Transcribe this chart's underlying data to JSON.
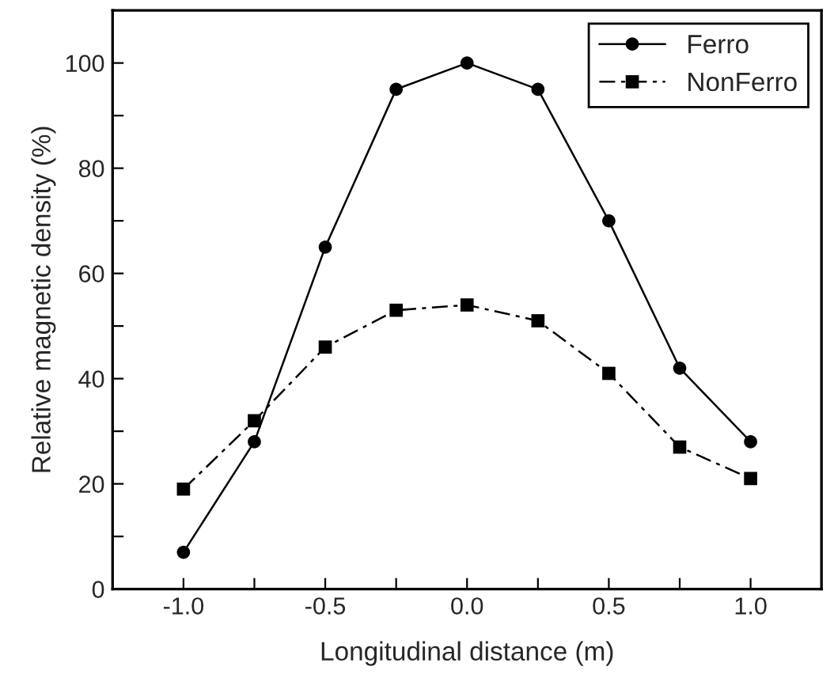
{
  "chart_data": {
    "type": "line",
    "xlabel": "Longitudinal distance (m)",
    "ylabel": "Relative magnetic density (%)",
    "x": [
      -1.0,
      -0.75,
      -0.5,
      -0.25,
      0.0,
      0.25,
      0.5,
      0.75,
      1.0
    ],
    "series": [
      {
        "name": "Ferro",
        "color": "#000000",
        "marker": "circle",
        "line_style": "solid",
        "values": [
          7,
          28,
          65,
          95,
          100,
          95,
          70,
          42,
          28
        ]
      },
      {
        "name": "NonFerro",
        "color": "#000000",
        "marker": "square",
        "line_style": "dashed",
        "values": [
          19,
          32,
          46,
          53,
          54,
          51,
          41,
          27,
          21
        ]
      }
    ],
    "xlim": [
      -1.25,
      1.25
    ],
    "ylim": [
      0,
      110
    ],
    "xticks": [
      {
        "value": -1.0,
        "label": "-1.0"
      },
      {
        "value": -0.75,
        "label": null
      },
      {
        "value": -0.5,
        "label": "-0.5"
      },
      {
        "value": -0.25,
        "label": null
      },
      {
        "value": 0.0,
        "label": "0.0"
      },
      {
        "value": 0.25,
        "label": null
      },
      {
        "value": 0.5,
        "label": "0.5"
      },
      {
        "value": 0.75,
        "label": null
      },
      {
        "value": 1.0,
        "label": "1.0"
      }
    ],
    "yticks": [
      0,
      {
        "value": 10,
        "label": null
      },
      20,
      {
        "value": 30,
        "label": null
      },
      40,
      {
        "value": 50,
        "label": null
      },
      60,
      {
        "value": 70,
        "label": null
      },
      80,
      {
        "value": 90,
        "label": null
      },
      100
    ],
    "grid": false,
    "legend": "top right"
  }
}
